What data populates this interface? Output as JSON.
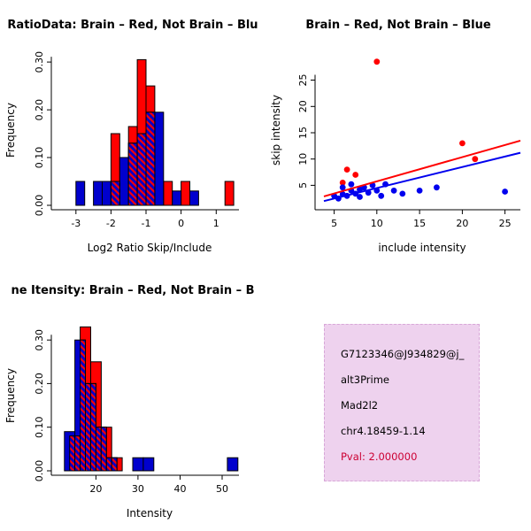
{
  "colors": {
    "brain": "#FF0000",
    "not_brain": "#0000CD",
    "scatter_blue": "#0000EE",
    "pval_text": "#CC0033",
    "info_bg": "#EED2EE",
    "info_border": "#D8A7D8",
    "background": "#FFFFFF"
  },
  "chart_data": [
    {
      "id": "log2-ratio-histogram",
      "type": "bar",
      "subtype": "overlaid-histogram",
      "title": "RatioData: Brain – Red, Not Brain – Blu",
      "xlabel": "Log2 Ratio Skip/Include",
      "ylabel": "Frequency",
      "xlim": [
        -3.45,
        1.65
      ],
      "ylim": [
        0,
        0.315
      ],
      "xticks": [
        -3,
        -2,
        -1,
        0,
        1
      ],
      "xtick_labels": [
        "-3",
        "-2",
        "-1",
        "0",
        "1"
      ],
      "yticks": [
        0,
        0.1,
        0.2,
        0.3
      ],
      "ytick_labels": [
        "0.00",
        "0.10",
        "0.20",
        "0.30"
      ],
      "bin_width": 0.25,
      "series": [
        {
          "name": "brain",
          "color": "#FF0000",
          "bins": [
            [
              -2.0,
              0.15
            ],
            [
              -1.5,
              0.165
            ],
            [
              -1.25,
              0.305
            ],
            [
              -1.0,
              0.25
            ],
            [
              -0.5,
              0.05
            ],
            [
              0.0,
              0.05
            ],
            [
              1.25,
              0.05
            ]
          ]
        },
        {
          "name": "not-brain",
          "color": "#0000CD",
          "bins": [
            [
              -3.0,
              0.05
            ],
            [
              -2.5,
              0.05
            ],
            [
              -2.25,
              0.05
            ],
            [
              -2.0,
              0.05
            ],
            [
              -1.75,
              0.1
            ],
            [
              -1.5,
              0.13
            ],
            [
              -1.25,
              0.15
            ],
            [
              -1.0,
              0.195
            ],
            [
              -0.75,
              0.195
            ],
            [
              -0.25,
              0.03
            ],
            [
              0.25,
              0.03
            ]
          ]
        }
      ]
    },
    {
      "id": "skip-include-scatter",
      "type": "scatter",
      "title": "Brain – Red, Not Brain – Blue",
      "xlabel": "include intensity",
      "ylabel": "skip intensity",
      "xlim": [
        3.8,
        26.8
      ],
      "ylim": [
        1.2,
        29.8
      ],
      "xticks": [
        5,
        10,
        15,
        20,
        25
      ],
      "xtick_labels": [
        "5",
        "10",
        "15",
        "20",
        "25"
      ],
      "yticks": [
        5,
        10,
        15,
        20,
        25
      ],
      "ytick_labels": [
        "5",
        "10",
        "15",
        "20",
        "25"
      ],
      "series": [
        {
          "name": "brain",
          "color": "#FF0000",
          "points": [
            [
              6,
              5.5
            ],
            [
              6.5,
              8
            ],
            [
              7.5,
              7
            ],
            [
              10,
              28.5
            ],
            [
              20,
              13
            ],
            [
              21.5,
              10
            ]
          ],
          "trend": [
            [
              3.8,
              2.9
            ],
            [
              26.8,
              13.5
            ]
          ]
        },
        {
          "name": "not-brain",
          "color": "#0000EE",
          "points": [
            [
              5,
              3
            ],
            [
              5.5,
              2.5
            ],
            [
              6,
              3.3
            ],
            [
              6,
              4.6
            ],
            [
              6.5,
              3
            ],
            [
              7,
              4
            ],
            [
              7,
              5.2
            ],
            [
              7.5,
              3.4
            ],
            [
              8,
              4.2
            ],
            [
              8,
              2.8
            ],
            [
              8.5,
              4.6
            ],
            [
              9,
              3.6
            ],
            [
              9.5,
              5
            ],
            [
              10,
              4
            ],
            [
              10.5,
              3
            ],
            [
              11,
              5.2
            ],
            [
              12,
              4
            ],
            [
              13,
              3.4
            ],
            [
              15,
              4
            ],
            [
              17,
              4.6
            ],
            [
              25,
              3.8
            ]
          ],
          "trend": [
            [
              3.8,
              2.0
            ],
            [
              26.8,
              11.2
            ]
          ]
        }
      ]
    },
    {
      "id": "gene-intensity-histogram",
      "type": "bar",
      "subtype": "overlaid-histogram",
      "title": "ne Itensity: Brain – Red, Not Brain – B",
      "xlabel": "Intensity",
      "ylabel": "Frequency",
      "xlim": [
        11.5,
        54
      ],
      "ylim": [
        0,
        0.345
      ],
      "xticks": [
        20,
        30,
        40,
        50
      ],
      "xtick_labels": [
        "20",
        "30",
        "40",
        "50"
      ],
      "yticks": [
        0,
        0.1,
        0.2,
        0.3
      ],
      "ytick_labels": [
        "0.00",
        "0.10",
        "0.20",
        "0.30"
      ],
      "bin_width": 2.5,
      "series": [
        {
          "name": "brain",
          "color": "#FF0000",
          "bins": [
            [
              13.75,
              0.08
            ],
            [
              16.25,
              0.33
            ],
            [
              18.75,
              0.25
            ],
            [
              21.25,
              0.1
            ],
            [
              23.75,
              0.03
            ]
          ]
        },
        {
          "name": "not-brain",
          "color": "#0000CD",
          "bins": [
            [
              12.5,
              0.09
            ],
            [
              15.0,
              0.3
            ],
            [
              17.5,
              0.2
            ],
            [
              20.0,
              0.1
            ],
            [
              22.5,
              0.03
            ],
            [
              28.75,
              0.03
            ],
            [
              31.25,
              0.03
            ],
            [
              51.25,
              0.03
            ]
          ]
        }
      ]
    }
  ],
  "info_box": {
    "gene_id": "G7123346@J934829@j_",
    "event_type": "alt3Prime",
    "gene_name": "Mad2l2",
    "location": "chr4.18459-1.14",
    "pval": "Pval: 2.000000"
  }
}
